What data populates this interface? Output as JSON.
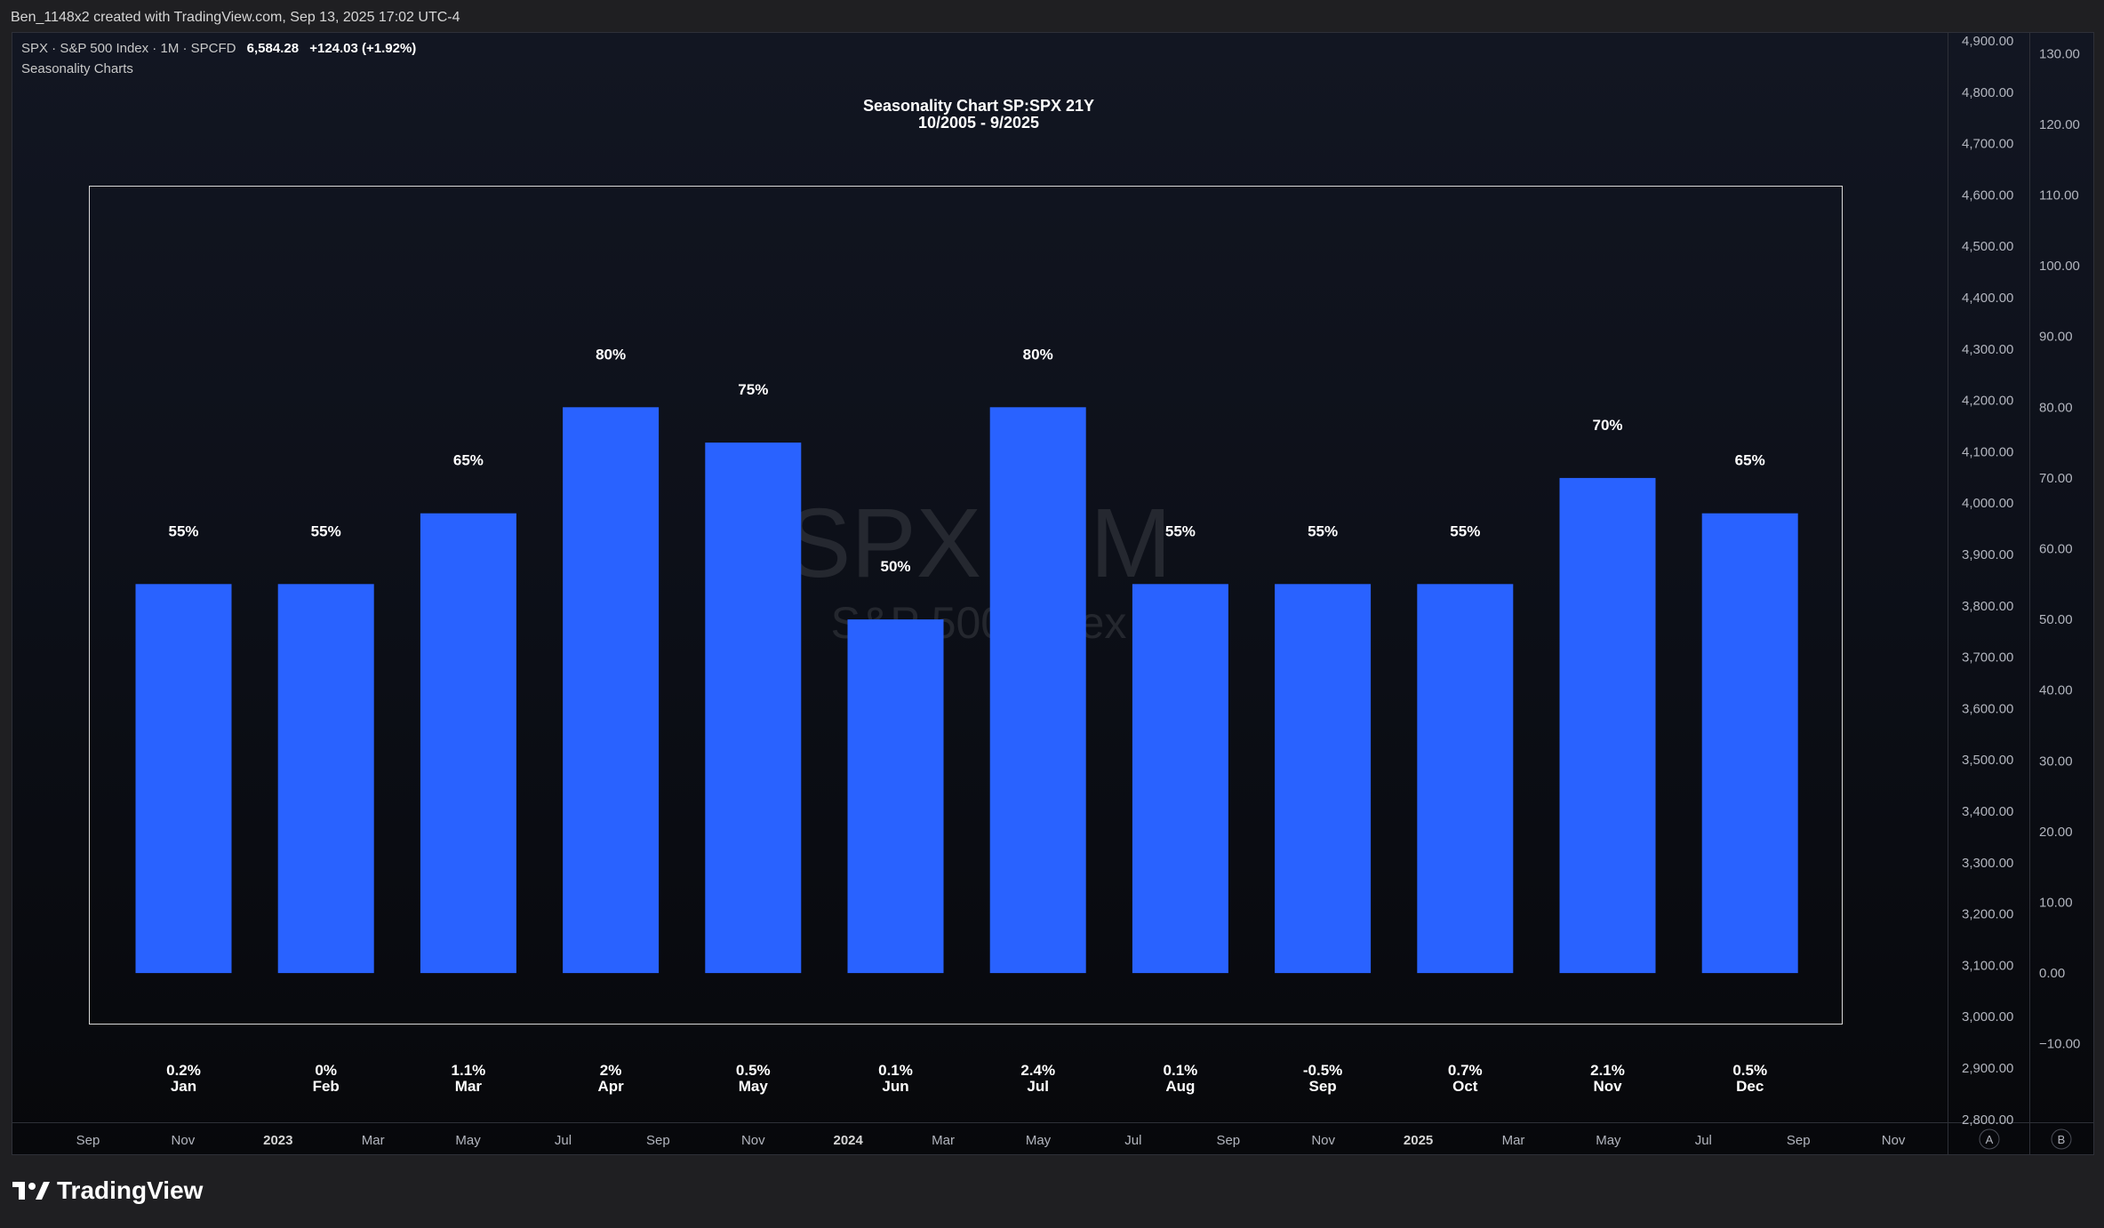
{
  "header": {
    "credit": "Ben_1148x2 created with TradingView.com, Sep 13, 2025 17:02 UTC-4"
  },
  "legend": {
    "symbol": "SPX · S&P 500 Index · 1M · SPCFD",
    "price": "6,584.28",
    "change": "+124.03 (+1.92%)",
    "indicator": "Seasonality Charts"
  },
  "watermark": {
    "symbol": "SPX, 1M",
    "name": "S&P 500 Index"
  },
  "footer": {
    "brand": "TradingView"
  },
  "colors": {
    "bar": "#2962ff",
    "background": "#0d1019",
    "text": "#ffffff",
    "axis_text": "#b2b5be"
  },
  "price_axis": {
    "labels": [
      "4,900.00",
      "4,800.00",
      "4,700.00",
      "4,600.00",
      "4,500.00",
      "4,400.00",
      "4,300.00",
      "4,200.00",
      "4,100.00",
      "4,000.00",
      "3,900.00",
      "3,800.00",
      "3,700.00",
      "3,600.00",
      "3,500.00",
      "3,400.00",
      "3,300.00",
      "3,200.00",
      "3,100.00",
      "3,000.00",
      "2,900.00",
      "2,800.00"
    ]
  },
  "time_axis": {
    "labels": [
      "Sep",
      "Nov",
      "2023",
      "Mar",
      "May",
      "Jul",
      "Sep",
      "Nov",
      "2024",
      "Mar",
      "May",
      "Jul",
      "Sep",
      "Nov",
      "2025",
      "Mar",
      "May",
      "Jul",
      "Sep",
      "Nov"
    ],
    "bold": [
      "2023",
      "2024",
      "2025"
    ],
    "scale_buttons": [
      "A",
      "B"
    ]
  },
  "chart_data": {
    "type": "bar",
    "title": "Seasonality Chart SP:SPX 21Y",
    "subtitle": "10/2005 - 9/2025",
    "categories": [
      "Jan",
      "Feb",
      "Mar",
      "Apr",
      "May",
      "Jun",
      "Jul",
      "Aug",
      "Sep",
      "Oct",
      "Nov",
      "Dec"
    ],
    "values": [
      55,
      55,
      65,
      80,
      75,
      50,
      80,
      55,
      55,
      55,
      70,
      65
    ],
    "value_labels": [
      "55%",
      "55%",
      "65%",
      "80%",
      "75%",
      "50%",
      "80%",
      "55%",
      "55%",
      "55%",
      "70%",
      "65%"
    ],
    "avg_returns": [
      "0.2%",
      "0%",
      "1.1%",
      "2%",
      "0.5%",
      "0.1%",
      "2.4%",
      "0.1%",
      "-0.5%",
      "0.7%",
      "2.1%",
      "0.5%"
    ],
    "ylim": [
      -15,
      135
    ],
    "yticks": [
      130,
      120,
      110,
      100,
      90,
      80,
      70,
      60,
      50,
      40,
      30,
      20,
      10,
      0,
      -10
    ],
    "ytick_labels": [
      "130.00",
      "120.00",
      "110.00",
      "100.00",
      "90.00",
      "80.00",
      "70.00",
      "60.00",
      "50.00",
      "40.00",
      "30.00",
      "20.00",
      "10.00",
      "0.00",
      "−10.00"
    ],
    "grid": false,
    "xlabel": "",
    "ylabel": ""
  }
}
